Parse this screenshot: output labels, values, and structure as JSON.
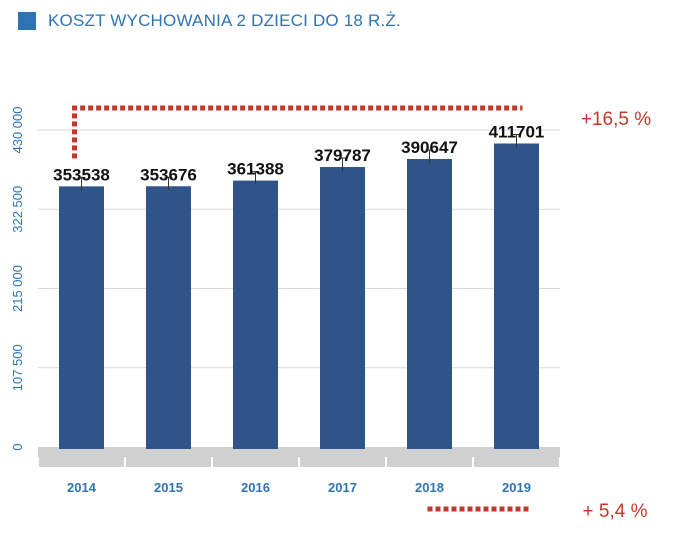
{
  "title": "KOSZT WYCHOWANIA 2 DZIECI DO 18 R.Ż.",
  "colors": {
    "accent": "#2e74b5",
    "bar": "#2e548a",
    "grid": "#d9d9d9",
    "floor": "#d0d0d0",
    "annotation": "#c0392b"
  },
  "chart_data": {
    "type": "bar",
    "categories": [
      "2014",
      "2015",
      "2016",
      "2017",
      "2018",
      "2019"
    ],
    "values": [
      353538,
      353676,
      361388,
      379787,
      390647,
      411701
    ],
    "value_labels": [
      "353538",
      "353676",
      "361388",
      "379787",
      "390647",
      "411701"
    ],
    "yticks": [
      0,
      107500,
      215000,
      322500,
      430000
    ],
    "ytick_labels": [
      "0",
      "107 500",
      "215 000",
      "322 500",
      "430 000"
    ],
    "ylim": [
      0,
      430000
    ],
    "grid": true,
    "error_bars": true,
    "annotations": [
      {
        "text": "+16,5 %",
        "between": [
          "2014",
          "2019"
        ],
        "position": "top"
      },
      {
        "text": "+ 5,4 %",
        "between": [
          "2018",
          "2019"
        ],
        "position": "bottom"
      }
    ]
  }
}
